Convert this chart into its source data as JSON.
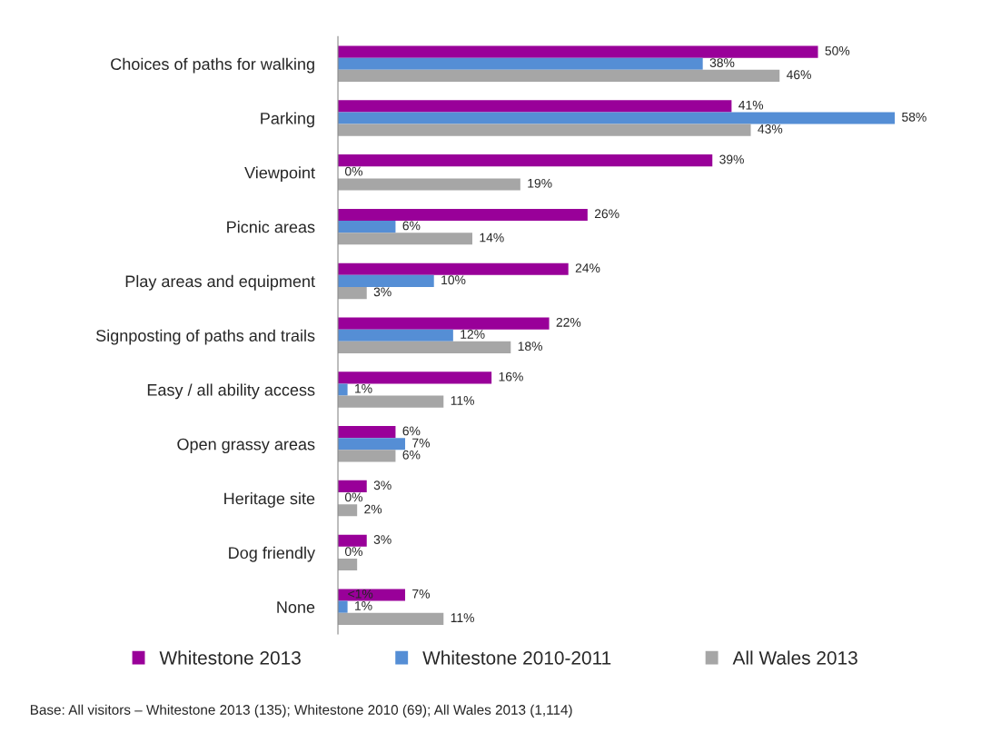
{
  "chart_data": {
    "type": "bar",
    "orientation": "horizontal",
    "categories": [
      "Choices of paths for walking",
      "Parking",
      "Viewpoint",
      "Picnic areas",
      "Play areas and equipment",
      "Signposting of paths and trails",
      "Easy / all ability access",
      "Open grassy areas",
      "Heritage site",
      "Dog friendly",
      "None"
    ],
    "series": [
      {
        "name": "Whitestone 2013",
        "color": "#990099",
        "values": [
          50,
          41,
          39,
          26,
          24,
          22,
          16,
          6,
          3,
          3,
          7
        ],
        "value_labels": [
          "50%",
          "41%",
          "39%",
          "26%",
          "24%",
          "22%",
          "16%",
          "6%",
          "3%",
          "3%",
          "7%"
        ]
      },
      {
        "name": "Whitestone 2010-2011",
        "color": "#558ed5",
        "values": [
          38,
          58,
          0,
          6,
          10,
          12,
          1,
          7,
          0,
          0,
          1
        ],
        "value_labels": [
          "38%",
          "58%",
          "0%",
          "6%",
          "10%",
          "12%",
          "1%",
          "7%",
          "0%",
          "0%",
          "1%"
        ]
      },
      {
        "name": "All Wales 2013",
        "color": "#a6a6a6",
        "values": [
          46,
          43,
          19,
          14,
          3,
          18,
          11,
          6,
          2,
          2,
          11
        ],
        "value_labels": [
          "46%",
          "43%",
          "19%",
          "14%",
          "3%",
          "18%",
          "11%",
          "6%",
          "2%",
          null,
          "11%"
        ]
      }
    ],
    "legend": "bottom",
    "annotations": [
      {
        "text": "<1%",
        "x": 1,
        "y": "None"
      },
      "Base: All visitors – Whitestone 2013 (135); Whitestone 2010 (69); All Wales 2013 (1,114)"
    ]
  }
}
